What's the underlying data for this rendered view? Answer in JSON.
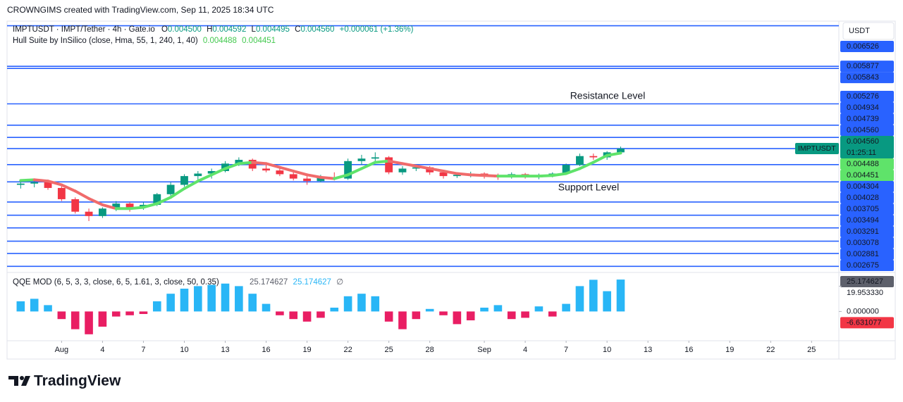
{
  "header": {
    "credit": "CROWNGIMS created with TradingView.com, Sep 11, 2025 18:34 UTC"
  },
  "footer": {
    "brand": "TradingView"
  },
  "chart_data": [
    {
      "type": "candlestick",
      "symbol": "IMPTUSDT",
      "legend_title": "IMPTUSDT · IMPT/Tether · 4h · Gate.io",
      "ohlc": [
        {
          "key": "O",
          "value": "0.004500"
        },
        {
          "key": "H",
          "value": "0.004592"
        },
        {
          "key": "L",
          "value": "0.004495"
        },
        {
          "key": "C",
          "value": "0.004560"
        }
      ],
      "change": "+0.000061 (+1.36%)",
      "currency": "USDT",
      "countdown": "01:25:11",
      "x": [
        "2025-07-29",
        "2025-07-30",
        "2025-07-31",
        "2025-08-01",
        "2025-08-02",
        "2025-08-03",
        "2025-08-04",
        "2025-08-05",
        "2025-08-06",
        "2025-08-07",
        "2025-08-08",
        "2025-08-09",
        "2025-08-10",
        "2025-08-11",
        "2025-08-12",
        "2025-08-13",
        "2025-08-14",
        "2025-08-15",
        "2025-08-16",
        "2025-08-17",
        "2025-08-18",
        "2025-08-19",
        "2025-08-20",
        "2025-08-21",
        "2025-08-22",
        "2025-08-23",
        "2025-08-24",
        "2025-08-25",
        "2025-08-26",
        "2025-08-27",
        "2025-08-28",
        "2025-08-29",
        "2025-08-30",
        "2025-08-31",
        "2025-09-01",
        "2025-09-02",
        "2025-09-03",
        "2025-09-04",
        "2025-09-05",
        "2025-09-06",
        "2025-09-07",
        "2025-09-08",
        "2025-09-09",
        "2025-09-10",
        "2025-09-11"
      ],
      "open": [
        0.00398,
        0.004,
        0.00402,
        0.00393,
        0.00375,
        0.00355,
        0.00348,
        0.0036,
        0.00368,
        0.00362,
        0.00366,
        0.00383,
        0.00398,
        0.00412,
        0.00416,
        0.0042,
        0.00432,
        0.00438,
        0.00424,
        0.00421,
        0.00415,
        0.00408,
        0.00404,
        0.0041,
        0.00408,
        0.00436,
        0.0044,
        0.00442,
        0.00418,
        0.00424,
        0.00426,
        0.00418,
        0.00412,
        0.00414,
        0.00416,
        0.00411,
        0.0041,
        0.00415,
        0.0041,
        0.00413,
        0.00416,
        0.0043,
        0.00444,
        0.00442,
        0.0045
      ],
      "high": [
        0.00405,
        0.00406,
        0.00404,
        0.00396,
        0.00378,
        0.0036,
        0.00362,
        0.00372,
        0.0037,
        0.0037,
        0.00385,
        0.00402,
        0.00415,
        0.0042,
        0.00424,
        0.00436,
        0.00442,
        0.0044,
        0.0043,
        0.00426,
        0.00418,
        0.00412,
        0.00414,
        0.00418,
        0.0044,
        0.00446,
        0.0045,
        0.00444,
        0.00428,
        0.0043,
        0.00428,
        0.0042,
        0.00418,
        0.00419,
        0.00418,
        0.00416,
        0.00418,
        0.00417,
        0.00416,
        0.00418,
        0.00432,
        0.00448,
        0.00448,
        0.00452,
        0.004592
      ],
      "low": [
        0.00392,
        0.00394,
        0.0039,
        0.00372,
        0.00352,
        0.0034,
        0.00345,
        0.00356,
        0.00355,
        0.00358,
        0.00364,
        0.0038,
        0.00395,
        0.00405,
        0.00408,
        0.00418,
        0.00428,
        0.0042,
        0.00418,
        0.00412,
        0.00405,
        0.00398,
        0.00402,
        0.00405,
        0.00406,
        0.0043,
        0.00434,
        0.00415,
        0.00414,
        0.0042,
        0.00414,
        0.00408,
        0.00409,
        0.0041,
        0.00408,
        0.00406,
        0.00408,
        0.00408,
        0.00407,
        0.0041,
        0.00414,
        0.00428,
        0.00438,
        0.00438,
        0.004495
      ],
      "close": [
        0.004,
        0.00402,
        0.00393,
        0.00375,
        0.00355,
        0.00348,
        0.0036,
        0.00368,
        0.00362,
        0.00366,
        0.00383,
        0.00398,
        0.00412,
        0.00416,
        0.0042,
        0.00432,
        0.00438,
        0.00424,
        0.00421,
        0.00415,
        0.00408,
        0.00404,
        0.0041,
        0.00408,
        0.00436,
        0.0044,
        0.00442,
        0.00418,
        0.00424,
        0.00426,
        0.00418,
        0.00412,
        0.00414,
        0.00416,
        0.00411,
        0.0041,
        0.00415,
        0.0041,
        0.00413,
        0.00416,
        0.0043,
        0.00444,
        0.00442,
        0.0045,
        0.00456
      ],
      "up_color": "#089981",
      "down_color": "#f23645",
      "hull": {
        "name": "Hull Suite by InSilico (close, Hma, 55, 1, 240, 1, 40)",
        "values": [
          0.00405,
          0.00406,
          0.00404,
          0.00398,
          0.00388,
          0.00376,
          0.00366,
          0.0036,
          0.0036,
          0.00362,
          0.00368,
          0.00378,
          0.00392,
          0.00404,
          0.00414,
          0.00424,
          0.00432,
          0.00434,
          0.00432,
          0.00426,
          0.0042,
          0.00414,
          0.0041,
          0.00408,
          0.00414,
          0.00424,
          0.00434,
          0.00436,
          0.00432,
          0.00428,
          0.00424,
          0.0042,
          0.00416,
          0.00414,
          0.00413,
          0.00412,
          0.00412,
          0.00412,
          0.00412,
          0.00413,
          0.00416,
          0.00424,
          0.00434,
          0.004451,
          0.004488
        ],
        "legend_values": [
          0.004488,
          0.004451
        ],
        "up_color": "#5fe36a",
        "down_color": "#f06b6b"
      },
      "levels": [
        0.006526,
        0.005877,
        0.005843,
        0.005276,
        0.004934,
        0.004739,
        {
          "value": 0.00456,
          "label": "0.004560"
        },
        0.004304,
        0.004028,
        0.003705,
        0.003494,
        0.003291,
        0.003078,
        0.002881,
        0.002675
      ],
      "level_color": "#2962ff",
      "annotations": [
        "Resistance Level",
        "Support Level"
      ],
      "annotation_color": "#f23645",
      "xlim": [
        "2025-07-28",
        "2025-09-27"
      ],
      "ylim": [
        0.0026,
        0.0066
      ]
    },
    {
      "type": "bar",
      "title": "QQE MOD (6, 5, 3, 3, close, 6, 5, 1.61, 3, close, 50, 0.35)",
      "legend_values": [
        "25.174627",
        "25.174627",
        "∅"
      ],
      "x": [
        "2025-07-29",
        "2025-07-30",
        "2025-07-31",
        "2025-08-01",
        "2025-08-02",
        "2025-08-03",
        "2025-08-04",
        "2025-08-05",
        "2025-08-06",
        "2025-08-07",
        "2025-08-08",
        "2025-08-09",
        "2025-08-10",
        "2025-08-11",
        "2025-08-12",
        "2025-08-13",
        "2025-08-14",
        "2025-08-15",
        "2025-08-16",
        "2025-08-17",
        "2025-08-18",
        "2025-08-19",
        "2025-08-20",
        "2025-08-21",
        "2025-08-22",
        "2025-08-23",
        "2025-08-24",
        "2025-08-25",
        "2025-08-26",
        "2025-08-27",
        "2025-08-28",
        "2025-08-29",
        "2025-08-30",
        "2025-08-31",
        "2025-09-01",
        "2025-09-02",
        "2025-09-03",
        "2025-09-04",
        "2025-09-05",
        "2025-09-06",
        "2025-09-07",
        "2025-09-08",
        "2025-09-09",
        "2025-09-10",
        "2025-09-11"
      ],
      "values": [
        8,
        10,
        5,
        -6,
        -14,
        -18,
        -12,
        -4,
        -3,
        -2,
        8,
        14,
        18,
        20,
        21,
        22,
        20,
        14,
        6,
        -3,
        -6,
        -8,
        -5,
        3,
        12,
        14,
        12,
        -8,
        -14,
        -6,
        2,
        -3,
        -10,
        -7,
        3,
        5,
        -6,
        -5,
        4,
        -4,
        6,
        20,
        25,
        16,
        25.174627
      ],
      "pos_color": "#29b6f6",
      "neg_color": "#e91e63",
      "markers": [
        {
          "value": 25.174627,
          "label": "25.174627",
          "color": "#5d606b"
        },
        {
          "value": -6.631077,
          "label": "-6.631077",
          "color": "#f23645"
        }
      ],
      "xlim": [
        "2025-07-28",
        "2025-09-27"
      ],
      "ylim": [
        -22,
        28
      ],
      "yticks": [
        {
          "value": 19.95333,
          "label": "19.953330"
        },
        {
          "value": 0,
          "label": "0.000000"
        }
      ],
      "xticks": [
        {
          "value": "2025-08-01",
          "label": "Aug"
        },
        {
          "value": "2025-08-04",
          "label": "4"
        },
        {
          "value": "2025-08-07",
          "label": "7"
        },
        {
          "value": "2025-08-10",
          "label": "10"
        },
        {
          "value": "2025-08-13",
          "label": "13"
        },
        {
          "value": "2025-08-16",
          "label": "16"
        },
        {
          "value": "2025-08-19",
          "label": "19"
        },
        {
          "value": "2025-08-22",
          "label": "22"
        },
        {
          "value": "2025-08-25",
          "label": "25"
        },
        {
          "value": "2025-08-28",
          "label": "28"
        },
        {
          "value": "2025-09-01",
          "label": "Sep"
        },
        {
          "value": "2025-09-04",
          "label": "4"
        },
        {
          "value": "2025-09-07",
          "label": "7"
        },
        {
          "value": "2025-09-10",
          "label": "10"
        },
        {
          "value": "2025-09-13",
          "label": "13"
        },
        {
          "value": "2025-09-16",
          "label": "16"
        },
        {
          "value": "2025-09-19",
          "label": "19"
        },
        {
          "value": "2025-09-22",
          "label": "22"
        },
        {
          "value": "2025-09-25",
          "label": "25"
        }
      ]
    }
  ]
}
